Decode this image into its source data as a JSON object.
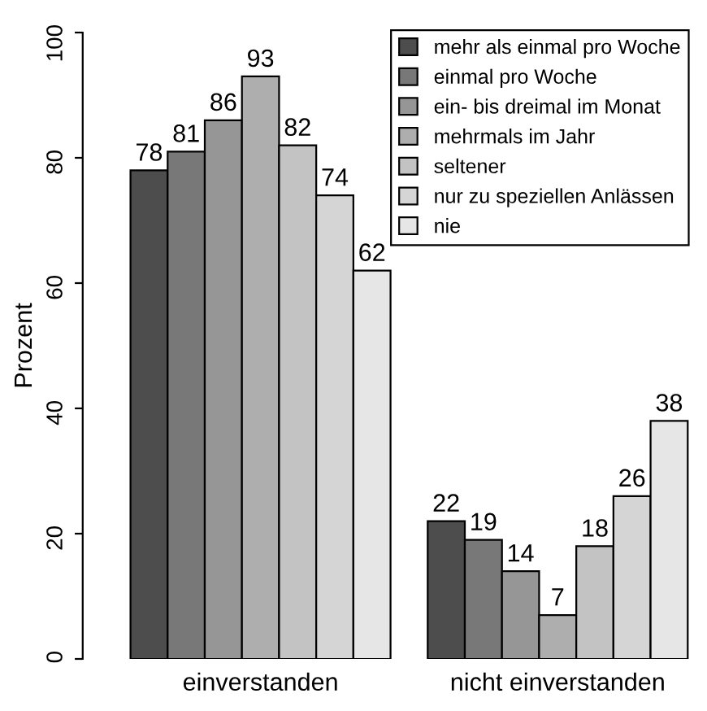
{
  "chart_data": {
    "type": "bar",
    "ylabel": "Prozent",
    "categories": [
      "einverstanden",
      "nicht einverstanden"
    ],
    "series": [
      {
        "name": "mehr als einmal pro Woche",
        "color": "#4d4d4d",
        "values": [
          78,
          22
        ]
      },
      {
        "name": "einmal pro Woche",
        "color": "#787878",
        "values": [
          81,
          19
        ]
      },
      {
        "name": "ein- bis dreimal im Monat",
        "color": "#969696",
        "values": [
          86,
          14
        ]
      },
      {
        "name": "mehrmals im Jahr",
        "color": "#aeaeae",
        "values": [
          93,
          7
        ]
      },
      {
        "name": "seltener",
        "color": "#c3c3c3",
        "values": [
          82,
          18
        ]
      },
      {
        "name": "nur zu speziellen Anlässen",
        "color": "#d5d5d5",
        "values": [
          74,
          26
        ]
      },
      {
        "name": "nie",
        "color": "#e6e6e6",
        "values": [
          62,
          38
        ]
      }
    ],
    "ylim": [
      0,
      100
    ],
    "yticks": [
      0,
      20,
      40,
      60,
      80,
      100
    ],
    "data_labels": true,
    "legend": "top right",
    "grid": false
  }
}
